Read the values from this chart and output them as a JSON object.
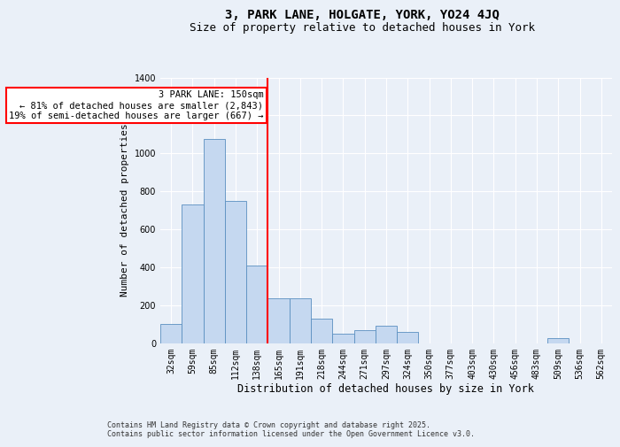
{
  "title": "3, PARK LANE, HOLGATE, YORK, YO24 4JQ",
  "subtitle": "Size of property relative to detached houses in York",
  "xlabel": "Distribution of detached houses by size in York",
  "ylabel": "Number of detached properties",
  "categories": [
    "32sqm",
    "59sqm",
    "85sqm",
    "112sqm",
    "138sqm",
    "165sqm",
    "191sqm",
    "218sqm",
    "244sqm",
    "271sqm",
    "297sqm",
    "324sqm",
    "350sqm",
    "377sqm",
    "403sqm",
    "430sqm",
    "456sqm",
    "483sqm",
    "509sqm",
    "536sqm",
    "562sqm"
  ],
  "values": [
    100,
    730,
    1075,
    750,
    410,
    235,
    235,
    130,
    50,
    70,
    90,
    60,
    0,
    0,
    0,
    0,
    0,
    0,
    25,
    0,
    0
  ],
  "bar_color": "#c5d8f0",
  "bar_edge_color": "#5a8fc0",
  "red_line_index": 4.5,
  "red_line_label": "3 PARK LANE: 150sqm",
  "annotation_line1": "← 81% of detached houses are smaller (2,843)",
  "annotation_line2": "19% of semi-detached houses are larger (667) →",
  "annotation_box_color": "white",
  "annotation_box_edge": "red",
  "ylim": [
    0,
    1400
  ],
  "yticks": [
    0,
    200,
    400,
    600,
    800,
    1000,
    1200,
    1400
  ],
  "background_color": "#eaf0f8",
  "footer_line1": "Contains HM Land Registry data © Crown copyright and database right 2025.",
  "footer_line2": "Contains public sector information licensed under the Open Government Licence v3.0.",
  "title_fontsize": 10,
  "subtitle_fontsize": 9,
  "tick_fontsize": 7,
  "ylabel_fontsize": 8,
  "xlabel_fontsize": 8.5,
  "annotation_fontsize": 7.5,
  "footer_fontsize": 6
}
